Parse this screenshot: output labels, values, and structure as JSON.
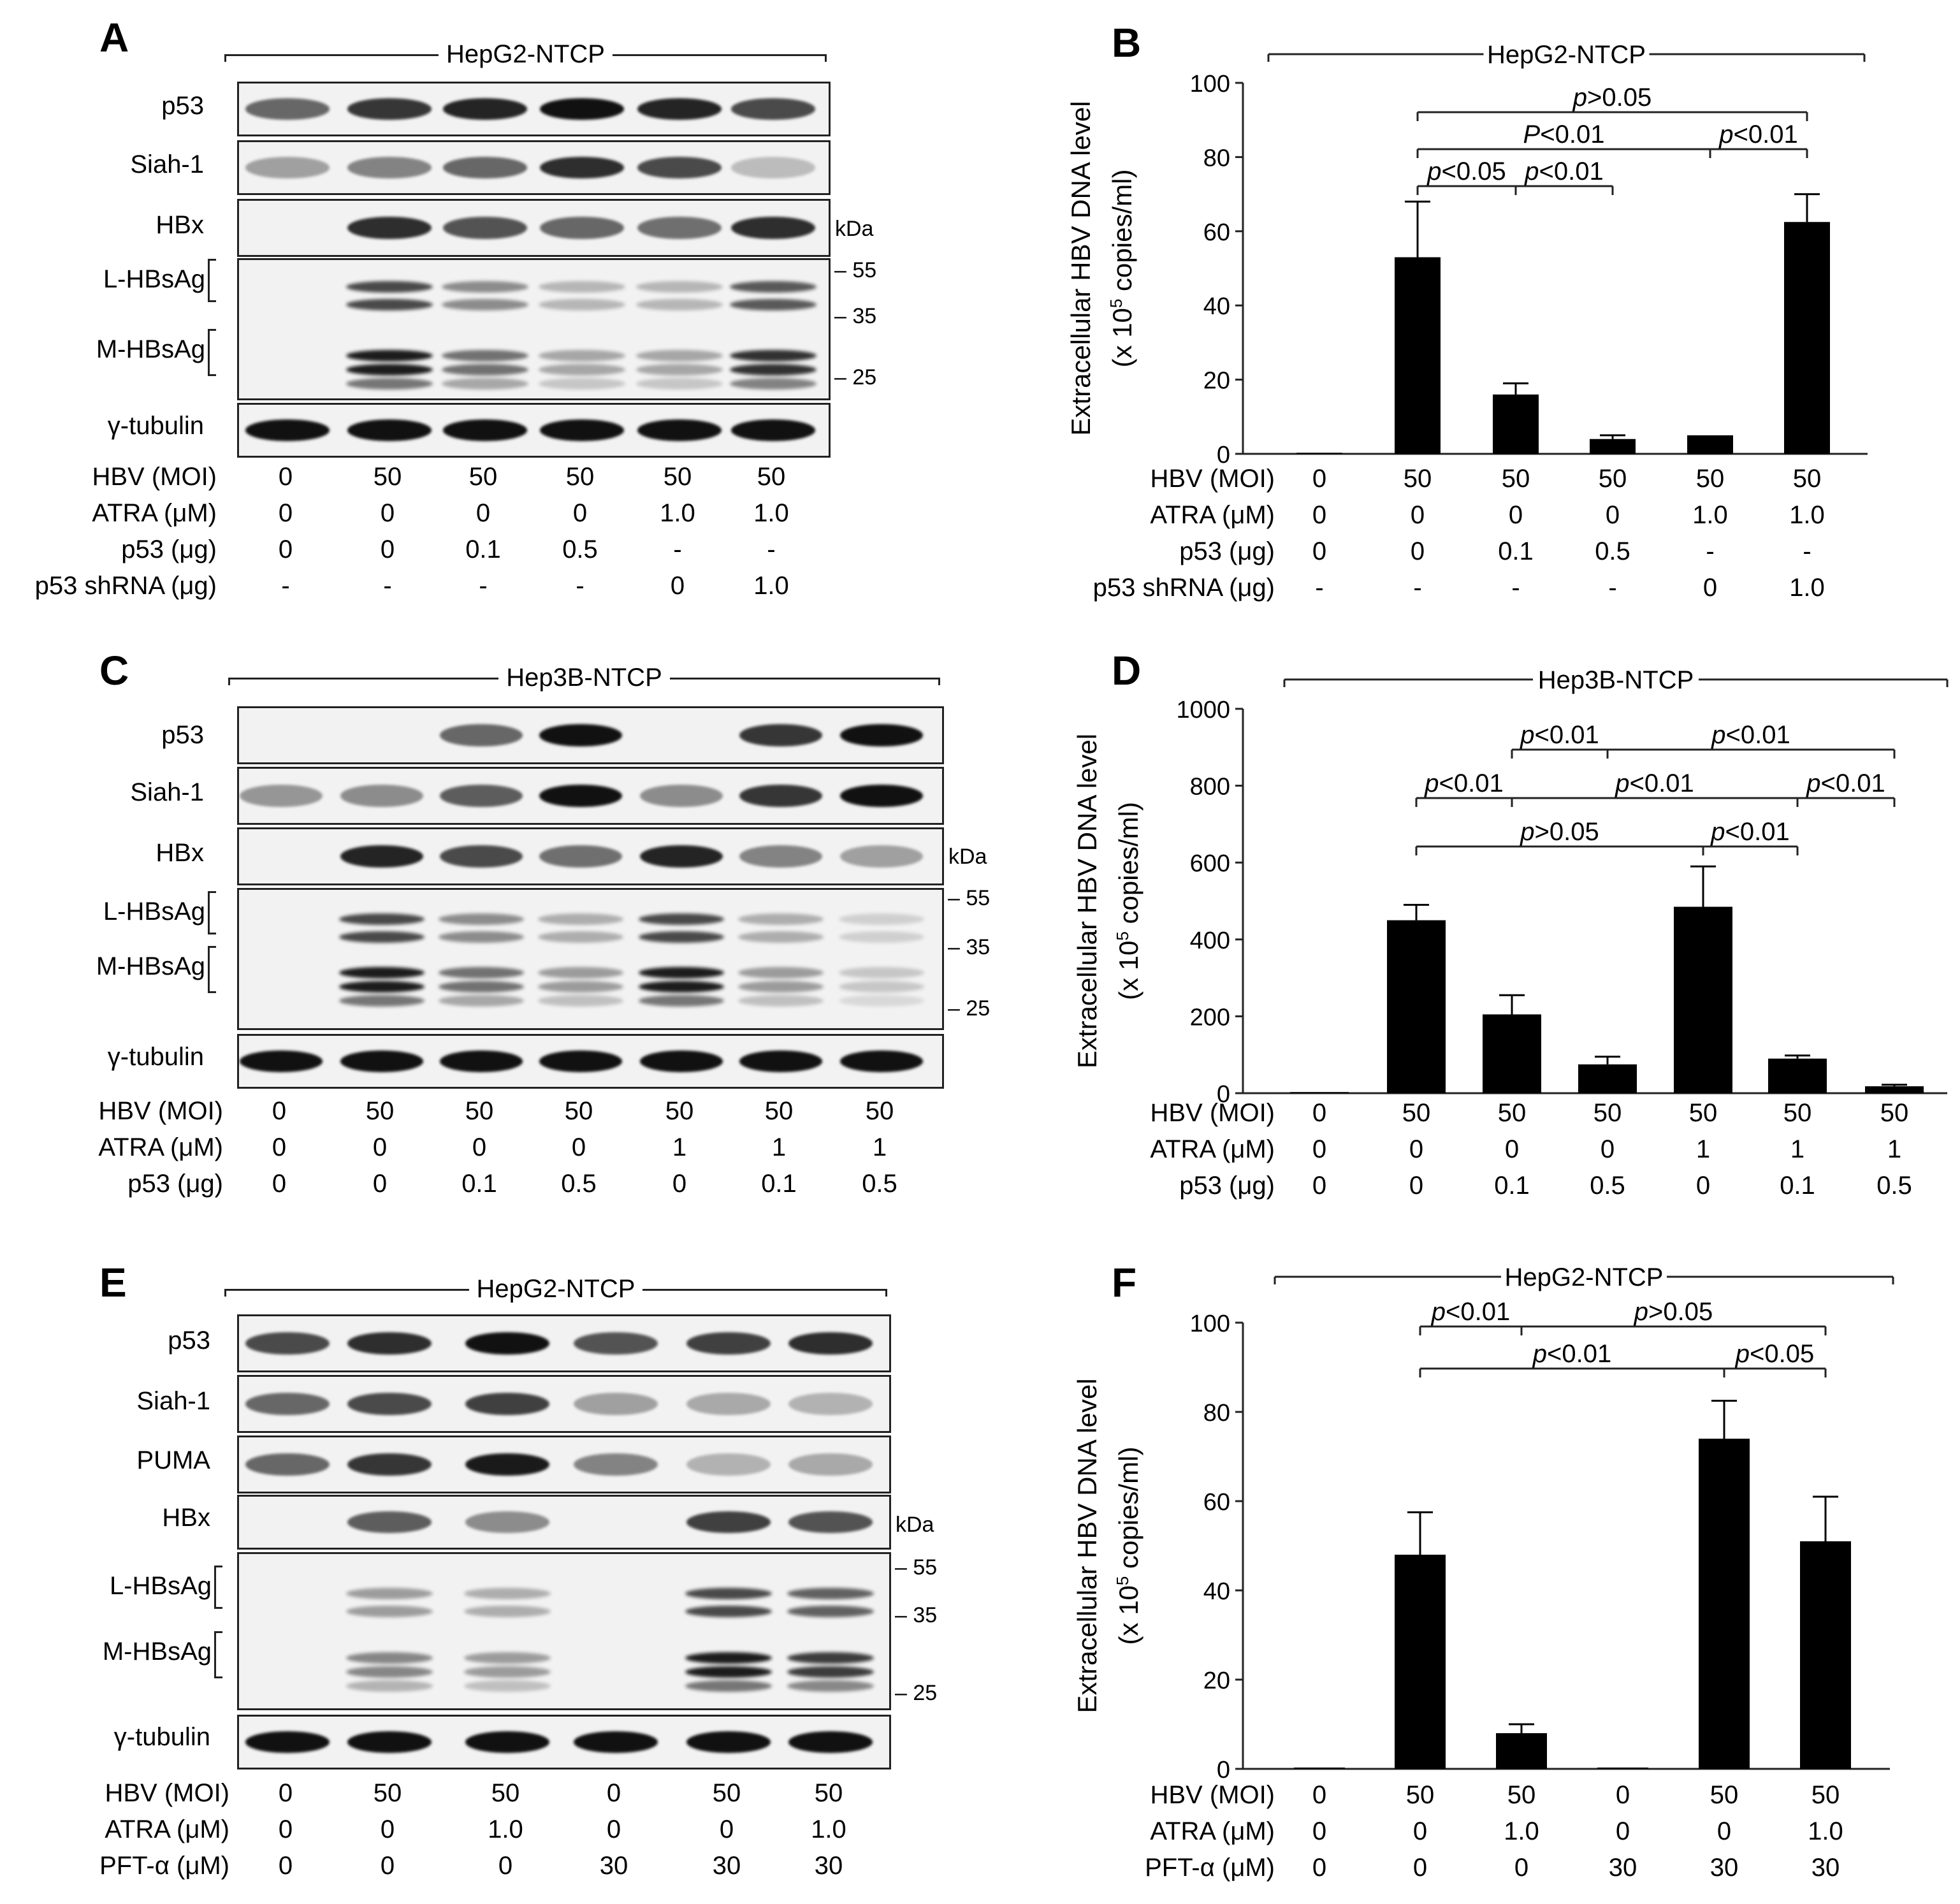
{
  "panels": {
    "A": {
      "letter": "A",
      "cell_line": "HepG2-NTCP",
      "blots": [
        "p53",
        "Siah-1",
        "HBx",
        "L-HBsAg",
        "M-HBsAg",
        "γ-tubulin"
      ],
      "kda_label": "kDa",
      "markers": [
        "55",
        "35",
        "25"
      ],
      "rows": [
        {
          "label": "HBV (MOI)",
          "values": [
            "0",
            "50",
            "50",
            "50",
            "50",
            "50"
          ]
        },
        {
          "label": "ATRA (μM)",
          "values": [
            "0",
            "0",
            "0",
            "0",
            "1.0",
            "1.0"
          ]
        },
        {
          "label": "p53 (μg)",
          "values": [
            "0",
            "0",
            "0.1",
            "0.5",
            "-",
            "-"
          ]
        },
        {
          "label": "p53 shRNA (μg)",
          "values": [
            "-",
            "-",
            "-",
            "-",
            "0",
            "1.0"
          ]
        }
      ]
    },
    "C": {
      "letter": "C",
      "cell_line": "Hep3B-NTCP",
      "blots": [
        "p53",
        "Siah-1",
        "HBx",
        "L-HBsAg",
        "M-HBsAg",
        "γ-tubulin"
      ],
      "kda_label": "kDa",
      "markers": [
        "55",
        "35",
        "25"
      ],
      "rows": [
        {
          "label": "HBV (MOI)",
          "values": [
            "0",
            "50",
            "50",
            "50",
            "50",
            "50",
            "50"
          ]
        },
        {
          "label": "ATRA (μM)",
          "values": [
            "0",
            "0",
            "0",
            "0",
            "1",
            "1",
            "1"
          ]
        },
        {
          "label": "p53 (μg)",
          "values": [
            "0",
            "0",
            "0.1",
            "0.5",
            "0",
            "0.1",
            "0.5"
          ]
        }
      ]
    },
    "E": {
      "letter": "E",
      "cell_line": "HepG2-NTCP",
      "blots": [
        "p53",
        "Siah-1",
        "PUMA",
        "HBx",
        "L-HBsAg",
        "M-HBsAg",
        "γ-tubulin"
      ],
      "kda_label": "kDa",
      "markers": [
        "55",
        "35",
        "25"
      ],
      "rows": [
        {
          "label": "HBV (MOI)",
          "values": [
            "0",
            "50",
            "50",
            "0",
            "50",
            "50"
          ]
        },
        {
          "label": "ATRA (μM)",
          "values": [
            "0",
            "0",
            "1.0",
            "0",
            "0",
            "1.0"
          ]
        },
        {
          "label": "PFT-α (μM)",
          "values": [
            "0",
            "0",
            "0",
            "30",
            "30",
            "30"
          ]
        }
      ]
    }
  },
  "chart_data": [
    {
      "panel": "B",
      "type": "bar",
      "title": "HepG2-NTCP",
      "ylabel": "Extracellular HBV DNA level",
      "ylabel2": "(x 10^5 copies/ml)",
      "ylabel2_pre": "(x 10",
      "ylabel2_exp": "5",
      "ylabel2_post": " copies/ml)",
      "ylim": [
        0,
        100
      ],
      "yticks": [
        "0",
        "20",
        "40",
        "60",
        "80",
        "100"
      ],
      "values": [
        0.3,
        53,
        16,
        4,
        5,
        62.5
      ],
      "errors": [
        0,
        15,
        3,
        1,
        0,
        7.5
      ],
      "rows": [
        {
          "label": "HBV (MOI)",
          "values": [
            "0",
            "50",
            "50",
            "50",
            "50",
            "50"
          ]
        },
        {
          "label": "ATRA (μM)",
          "values": [
            "0",
            "0",
            "0",
            "0",
            "1.0",
            "1.0"
          ]
        },
        {
          "label": "p53 (μg)",
          "values": [
            "0",
            "0",
            "0.1",
            "0.5",
            "-",
            "-"
          ]
        },
        {
          "label": "p53 shRNA (μg)",
          "values": [
            "-",
            "-",
            "-",
            "-",
            "0",
            "1.0"
          ]
        }
      ],
      "annotations": [
        {
          "text": "p>0.05",
          "from": 1,
          "to": 5,
          "level": 0
        },
        {
          "text": "P<0.01",
          "from": 1,
          "to": 4,
          "level": 1
        },
        {
          "text": "p<0.01",
          "from": 4,
          "to": 5,
          "level": 1
        },
        {
          "text": "p<0.05",
          "from": 1,
          "to": 2,
          "level": 2
        },
        {
          "text": "p<0.01",
          "from": 2,
          "to": 3,
          "level": 2
        }
      ]
    },
    {
      "panel": "D",
      "type": "bar",
      "title": "Hep3B-NTCP",
      "ylabel": "Extracellular HBV DNA level",
      "ylabel2": "(x 10^5 copies/ml)",
      "ylabel2_pre": "(x 10",
      "ylabel2_exp": "5",
      "ylabel2_post": " copies/ml)",
      "ylim": [
        0,
        1000
      ],
      "yticks": [
        "0",
        "200",
        "400",
        "600",
        "800",
        "1000"
      ],
      "values": [
        3,
        450,
        205,
        75,
        485,
        90,
        18
      ],
      "errors": [
        0,
        40,
        50,
        20,
        105,
        8,
        4
      ],
      "rows": [
        {
          "label": "HBV (MOI)",
          "values": [
            "0",
            "50",
            "50",
            "50",
            "50",
            "50",
            "50"
          ]
        },
        {
          "label": "ATRA (μM)",
          "values": [
            "0",
            "0",
            "0",
            "0",
            "1",
            "1",
            "1"
          ]
        },
        {
          "label": "p53 (μg)",
          "values": [
            "0",
            "0",
            "0.1",
            "0.5",
            "0",
            "0.1",
            "0.5"
          ]
        }
      ],
      "annotations": [
        {
          "text": "p<0.01",
          "from": 2,
          "to": 3,
          "level": 0
        },
        {
          "text": "p<0.01",
          "from": 3,
          "to": 6,
          "level": 0
        },
        {
          "text": "p<0.01",
          "from": 1,
          "to": 2,
          "level": 1
        },
        {
          "text": "p<0.01",
          "from": 2,
          "to": 5,
          "level": 1
        },
        {
          "text": "p<0.01",
          "from": 5,
          "to": 6,
          "level": 1
        },
        {
          "text": "p>0.05",
          "from": 1,
          "to": 4,
          "level": 2
        },
        {
          "text": "p<0.01",
          "from": 4,
          "to": 5,
          "level": 2
        }
      ]
    },
    {
      "panel": "F",
      "type": "bar",
      "title": "HepG2-NTCP",
      "ylabel": "Extracellular HBV DNA level",
      "ylabel2": "(x 10^5 copies/ml)",
      "ylabel2_pre": "(x 10",
      "ylabel2_exp": "5",
      "ylabel2_post": " copies/ml)",
      "ylim": [
        0,
        100
      ],
      "yticks": [
        "0",
        "20",
        "40",
        "60",
        "80",
        "100"
      ],
      "values": [
        0.3,
        48,
        8,
        0.3,
        74,
        51
      ],
      "errors": [
        0,
        9.5,
        2,
        0,
        8.5,
        10
      ],
      "rows": [
        {
          "label": "HBV (MOI)",
          "values": [
            "0",
            "50",
            "50",
            "0",
            "50",
            "50"
          ]
        },
        {
          "label": "ATRA (μM)",
          "values": [
            "0",
            "0",
            "1.0",
            "0",
            "0",
            "1.0"
          ]
        },
        {
          "label": "PFT-α (μM)",
          "values": [
            "0",
            "0",
            "0",
            "30",
            "30",
            "30"
          ]
        }
      ],
      "annotations": [
        {
          "text": "p<0.01",
          "from": 1,
          "to": 2,
          "level": 0
        },
        {
          "text": "p>0.05",
          "from": 2,
          "to": 5,
          "level": 0
        },
        {
          "text": "p<0.01",
          "from": 1,
          "to": 4,
          "level": 1
        },
        {
          "text": "p<0.05",
          "from": 4,
          "to": 5,
          "level": 1
        }
      ]
    }
  ]
}
